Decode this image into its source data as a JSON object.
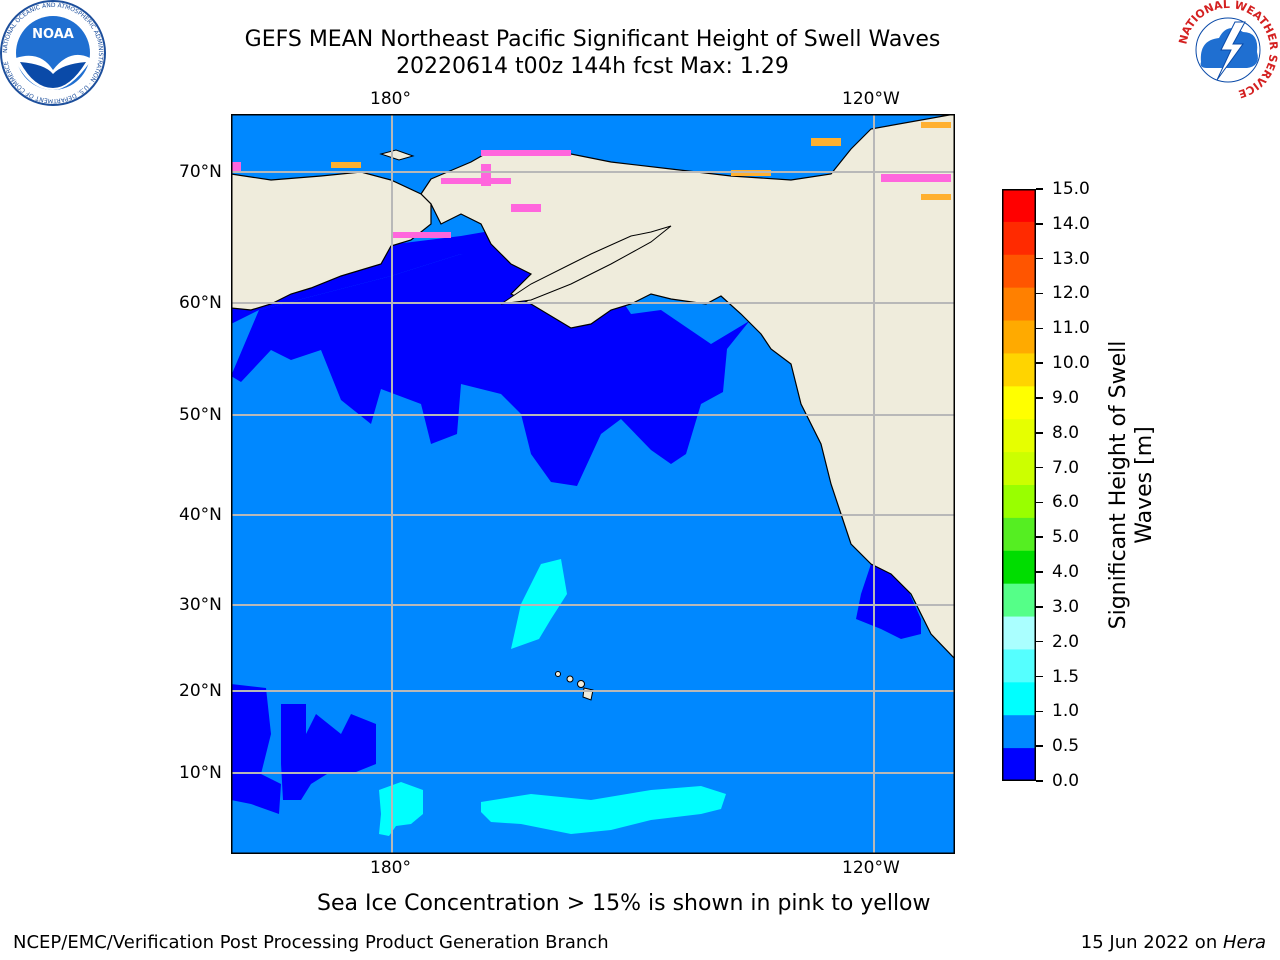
{
  "header": {
    "title_line1": "GEFS MEAN Northeast Pacific Significant Height of Swell Waves",
    "title_line2": "20220614 t00z 144h fcst   Max: 1.29"
  },
  "logos": {
    "noara_text": "NOAA",
    "noaa_ring": "NATIONAL OCEANIC AND ATMOSPHERIC ADMINISTRATION · U.S. DEPARTMENT OF COMMERCE",
    "nws_ring": "NATIONAL WEATHER SERVICE"
  },
  "map": {
    "lon_top": [
      "180°",
      "120°W"
    ],
    "lon_bottom": [
      "180°",
      "120°W"
    ],
    "lat_labels": [
      "70°N",
      "60°N",
      "50°N",
      "40°N",
      "30°N",
      "20°N",
      "10°N"
    ],
    "colors": {
      "land": "#efecdc",
      "ice_pink": "#ff66dd",
      "ice_orange": "#ffb030"
    }
  },
  "colorbar": {
    "label_line1": "Significant Height of Swell",
    "label_line2": "Waves [m]",
    "ticks": [
      "15.0",
      "14.0",
      "13.0",
      "12.0",
      "11.0",
      "10.0",
      "9.0",
      "8.0",
      "7.0",
      "6.0",
      "5.0",
      "4.0",
      "3.0",
      "2.0",
      "1.5",
      "1.0",
      "0.5",
      "0.0"
    ],
    "colors_top_to_bottom": [
      "#ff0000",
      "#ff2a00",
      "#ff5500",
      "#ff8000",
      "#ffaa00",
      "#ffd400",
      "#ffff00",
      "#e6ff00",
      "#ccff00",
      "#99ff00",
      "#55ee22",
      "#00dd00",
      "#55ff88",
      "#aaffff",
      "#55ffff",
      "#00ffff",
      "#0088ff",
      "#0000ff"
    ]
  },
  "caption": "Sea Ice Concentration > 15% is shown in pink to yellow",
  "footer": {
    "left": "NCEP/EMC/Verification Post Processing Product Generation Branch",
    "date": "15 Jun 2022 on ",
    "machine": "Hera"
  }
}
